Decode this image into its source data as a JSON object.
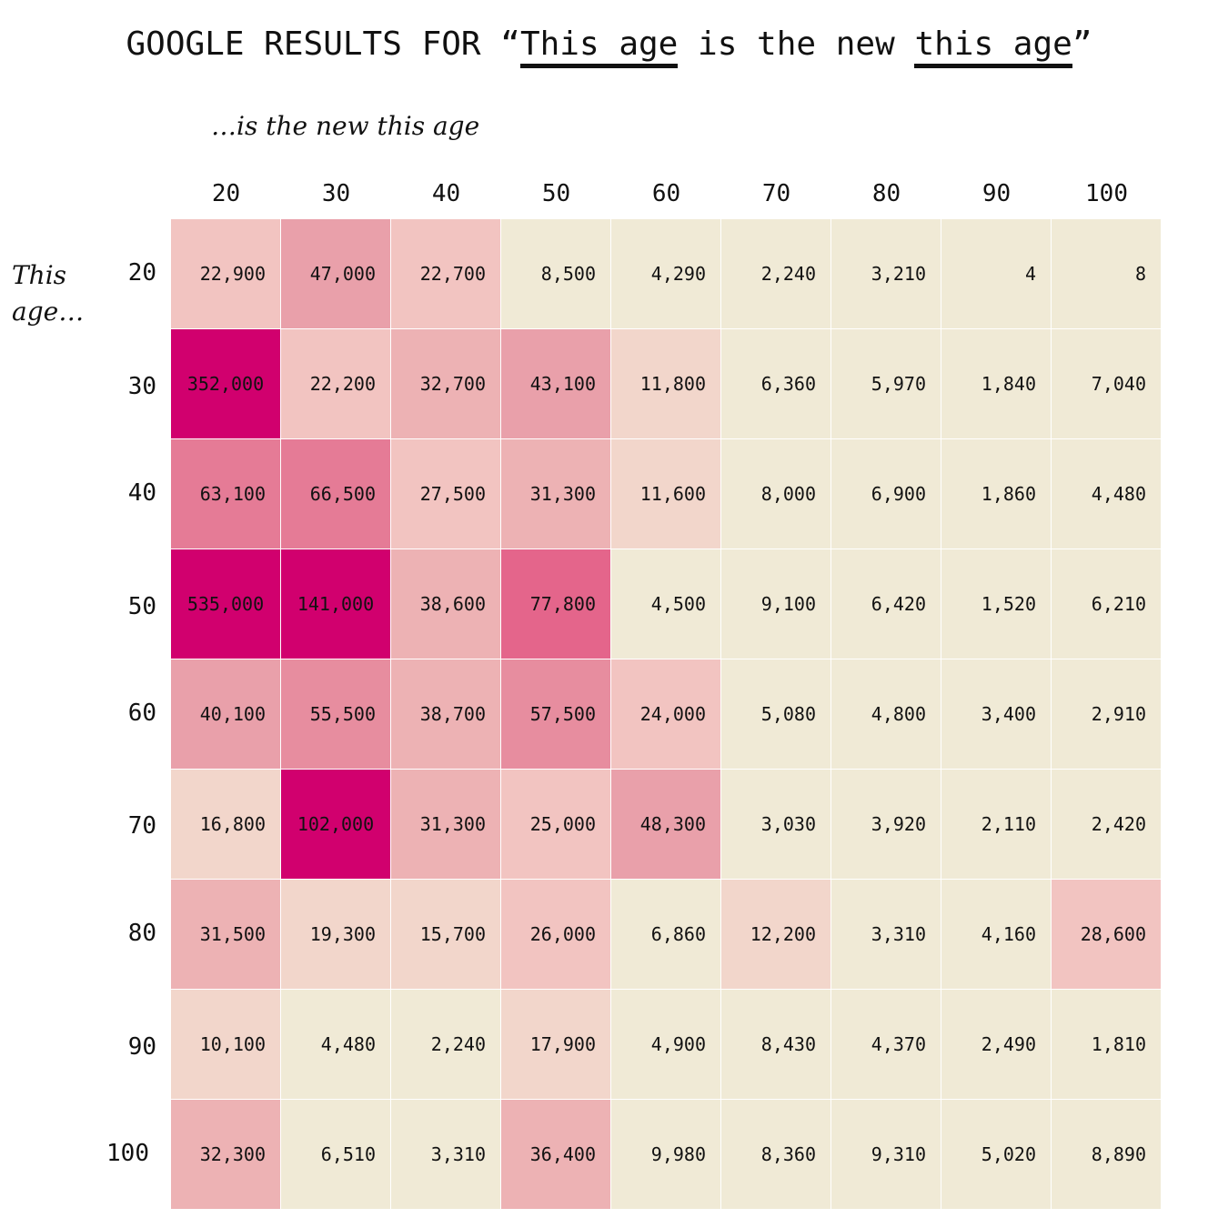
{
  "title": {
    "prefix": "GOOGLE RESULTS FOR “",
    "part1": "This age",
    "middle": " is the new ",
    "part2": "this age",
    "suffix": "”"
  },
  "col_caption": "…is the new this age",
  "row_caption_line1": "This",
  "row_caption_line2": "age…",
  "chart_data": {
    "type": "heatmap",
    "title": "GOOGLE RESULTS FOR “This age is the new this age”",
    "xlabel": "…is the new this age",
    "ylabel": "This age…",
    "x": [
      "20",
      "30",
      "40",
      "50",
      "60",
      "70",
      "80",
      "90",
      "100"
    ],
    "y": [
      "20",
      "30",
      "40",
      "50",
      "60",
      "70",
      "80",
      "90",
      "100"
    ],
    "values": [
      [
        22900,
        47000,
        22700,
        8500,
        4290,
        2240,
        3210,
        4,
        8
      ],
      [
        352000,
        22200,
        32700,
        43100,
        11800,
        6360,
        5970,
        1840,
        7040
      ],
      [
        63100,
        66500,
        27500,
        31300,
        11600,
        8000,
        6900,
        1860,
        4480
      ],
      [
        535000,
        141000,
        38600,
        77800,
        4500,
        9100,
        6420,
        1520,
        6210
      ],
      [
        40100,
        55500,
        38700,
        57500,
        24000,
        5080,
        4800,
        3400,
        2910
      ],
      [
        16800,
        102000,
        31300,
        25000,
        48300,
        3030,
        3920,
        2110,
        2420
      ],
      [
        31500,
        19300,
        15700,
        26000,
        6860,
        12200,
        3310,
        4160,
        28600
      ],
      [
        10100,
        4480,
        2240,
        17900,
        4900,
        8430,
        4370,
        2490,
        1810
      ],
      [
        32300,
        6510,
        3310,
        36400,
        9980,
        8360,
        9310,
        5020,
        8890
      ]
    ],
    "labels": [
      [
        "22,900",
        "47,000",
        "22,700",
        "8,500",
        "4,290",
        "2,240",
        "3,210",
        "4",
        "8"
      ],
      [
        "352,000",
        "22,200",
        "32,700",
        "43,100",
        "11,800",
        "6,360",
        "5,970",
        "1,840",
        "7,040"
      ],
      [
        "63,100",
        "66,500",
        "27,500",
        "31,300",
        "11,600",
        "8,000",
        "6,900",
        "1,860",
        "4,480"
      ],
      [
        "535,000",
        "141,000",
        "38,600",
        "77,800",
        "4,500",
        "9,100",
        "6,420",
        "1,520",
        "6,210"
      ],
      [
        "40,100",
        "55,500",
        "38,700",
        "57,500",
        "24,000",
        "5,080",
        "4,800",
        "3,400",
        "2,910"
      ],
      [
        "16,800",
        "102,000",
        "31,300",
        "25,000",
        "48,300",
        "3,030",
        "3,920",
        "2,110",
        "2,420"
      ],
      [
        "31,500",
        "19,300",
        "15,700",
        "26,000",
        "6,860",
        "12,200",
        "3,310",
        "4,160",
        "28,600"
      ],
      [
        "10,100",
        "4,480",
        "2,240",
        "17,900",
        "4,900",
        "8,430",
        "4,370",
        "2,490",
        "1,810"
      ],
      [
        "32,300",
        "6,510",
        "3,310",
        "36,400",
        "9,980",
        "8,360",
        "9,310",
        "5,020",
        "8,890"
      ]
    ],
    "color_scale": [
      {
        "min": 0,
        "color": "#f0ead6"
      },
      {
        "min": 10000,
        "color": "#f2d6cb"
      },
      {
        "min": 20000,
        "color": "#f2c4c1"
      },
      {
        "min": 30000,
        "color": "#edb2b4"
      },
      {
        "min": 40000,
        "color": "#e9a0aa"
      },
      {
        "min": 50000,
        "color": "#e78d9f"
      },
      {
        "min": 60000,
        "color": "#e57b96"
      },
      {
        "min": 70000,
        "color": "#e4658b"
      },
      {
        "min": 100000,
        "color": "#d1006e"
      }
    ],
    "grid": true,
    "gridline_color": "#ffffff"
  }
}
